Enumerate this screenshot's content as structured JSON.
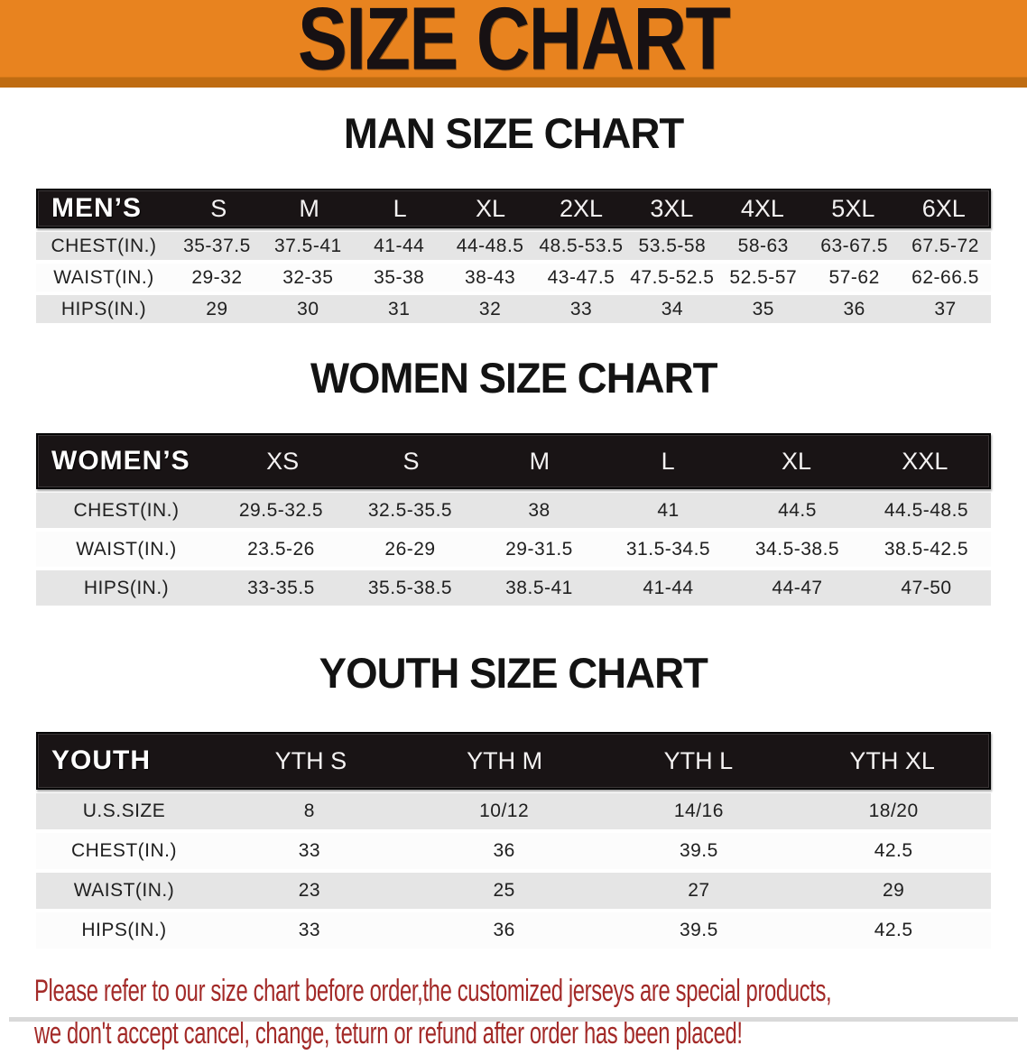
{
  "banner": {
    "title": "SIZE CHART"
  },
  "colors": {
    "banner_orange": "#e8831f",
    "banner_edge_orange": "#bf6c12",
    "table_header_black": "#191415",
    "row_gray": "#e5e5e5",
    "row_white": "#fcfcfc",
    "footer_red": "#a32a28"
  },
  "sections": [
    {
      "heading": "MAN SIZE CHART",
      "header_label": "MEN’S",
      "columns": [
        "S",
        "M",
        "L",
        "XL",
        "2XL",
        "3XL",
        "4XL",
        "5XL",
        "6XL"
      ],
      "rows": [
        {
          "label": "CHEST(IN.)",
          "values": [
            "35-37.5",
            "37.5-41",
            "41-44",
            "44-48.5",
            "48.5-53.5",
            "53.5-58",
            "58-63",
            "63-67.5",
            "67.5-72"
          ]
        },
        {
          "label": "WAIST(IN.)",
          "values": [
            "29-32",
            "32-35",
            "35-38",
            "38-43",
            "43-47.5",
            "47.5-52.5",
            "52.5-57",
            "57-62",
            "62-66.5"
          ]
        },
        {
          "label": "HIPS(IN.)",
          "values": [
            "29",
            "30",
            "31",
            "32",
            "33",
            "34",
            "35",
            "36",
            "37"
          ]
        }
      ]
    },
    {
      "heading": "WOMEN SIZE CHART",
      "header_label": "WOMEN’S",
      "columns": [
        "XS",
        "S",
        "M",
        "L",
        "XL",
        "XXL"
      ],
      "rows": [
        {
          "label": "CHEST(IN.)",
          "values": [
            "29.5-32.5",
            "32.5-35.5",
            "38",
            "41",
            "44.5",
            "44.5-48.5"
          ]
        },
        {
          "label": "WAIST(IN.)",
          "values": [
            "23.5-26",
            "26-29",
            "29-31.5",
            "31.5-34.5",
            "34.5-38.5",
            "38.5-42.5"
          ]
        },
        {
          "label": "HIPS(IN.)",
          "values": [
            "33-35.5",
            "35.5-38.5",
            "38.5-41",
            "41-44",
            "44-47",
            "47-50"
          ]
        }
      ]
    },
    {
      "heading": "YOUTH SIZE CHART",
      "header_label": "YOUTH",
      "columns": [
        "YTH S",
        "YTH M",
        "YTH L",
        "YTH XL"
      ],
      "rows": [
        {
          "label": "U.S.SIZE",
          "values": [
            "8",
            "10/12",
            "14/16",
            "18/20"
          ]
        },
        {
          "label": "CHEST(IN.)",
          "values": [
            "33",
            "36",
            "39.5",
            "42.5"
          ]
        },
        {
          "label": "WAIST(IN.)",
          "values": [
            "23",
            "25",
            "27",
            "29"
          ]
        },
        {
          "label": "HIPS(IN.)",
          "values": [
            "33",
            "36",
            "39.5",
            "42.5"
          ]
        }
      ]
    }
  ],
  "footer": {
    "line1": "Please refer to our size chart before order,the customized jerseys are special products,",
    "line2": "we don't accept cancel, change, teturn or refund after order has been placed!"
  }
}
